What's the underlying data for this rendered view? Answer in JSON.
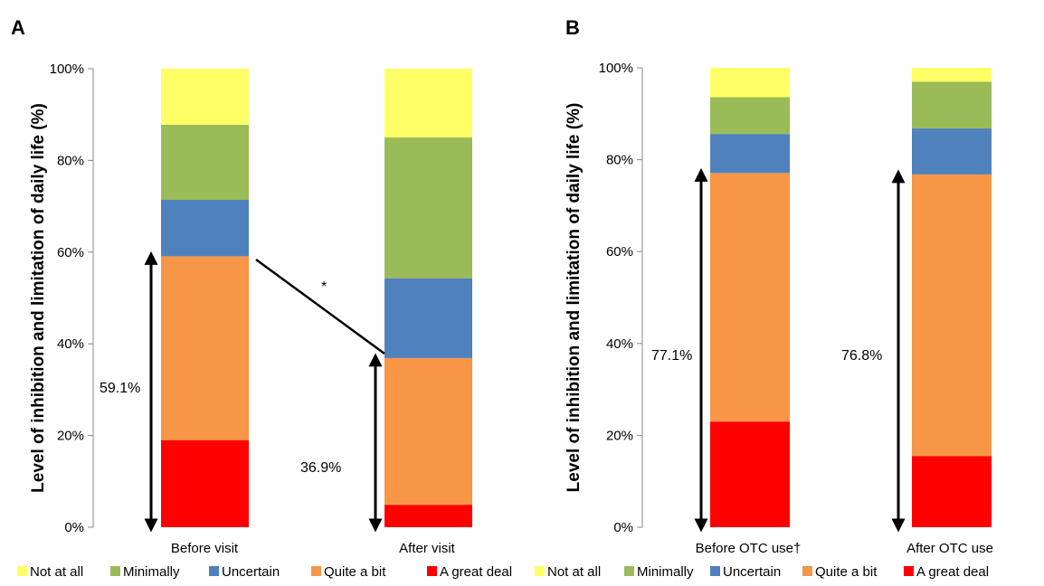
{
  "chart_data": [
    {
      "panel": "A",
      "type": "bar",
      "stacked": true,
      "percent": true,
      "ylabel": "Level of inhibition and limitation of daily life (%)",
      "ylim": [
        0,
        100
      ],
      "yticks": [
        "0%",
        "20%",
        "40%",
        "60%",
        "80%",
        "100%"
      ],
      "categories": [
        "Before visit",
        "After visit"
      ],
      "series": [
        {
          "name": "A great deal",
          "color": "#ff0000",
          "values": [
            19.0,
            4.9
          ]
        },
        {
          "name": "Quite a bit",
          "color": "#f79646",
          "values": [
            40.1,
            32.0
          ]
        },
        {
          "name": "Uncertain",
          "color": "#4f81bd",
          "values": [
            12.3,
            17.4
          ]
        },
        {
          "name": "Minimally",
          "color": "#9bbb59",
          "values": [
            16.4,
            30.7
          ]
        },
        {
          "name": "Not at all",
          "color": "#ffff66",
          "values": [
            12.2,
            15.0
          ]
        }
      ],
      "annotations": {
        "brackets": [
          {
            "category": "Before visit",
            "label": "59.1%",
            "value": 59.1
          },
          {
            "category": "After visit",
            "label": "36.9%",
            "value": 36.9
          }
        ],
        "significance_mark": "*"
      },
      "legend": "bottom"
    },
    {
      "panel": "B",
      "type": "bar",
      "stacked": true,
      "percent": true,
      "ylabel": "Level of inhibition and limitation of daily life (%)",
      "ylim": [
        0,
        100
      ],
      "yticks": [
        "0%",
        "20%",
        "40%",
        "60%",
        "80%",
        "100%"
      ],
      "categories": [
        "Before OTC use†",
        "After OTC use"
      ],
      "series": [
        {
          "name": "A great deal",
          "color": "#ff0000",
          "values": [
            23.0,
            15.5
          ]
        },
        {
          "name": "Quite a bit",
          "color": "#f79646",
          "values": [
            54.1,
            61.3
          ]
        },
        {
          "name": "Uncertain",
          "color": "#4f81bd",
          "values": [
            8.5,
            10.0
          ]
        },
        {
          "name": "Minimally",
          "color": "#9bbb59",
          "values": [
            8.0,
            10.2
          ]
        },
        {
          "name": "Not at all",
          "color": "#ffff66",
          "values": [
            6.4,
            3.0
          ]
        }
      ],
      "annotations": {
        "brackets": [
          {
            "category": "Before OTC use†",
            "label": "77.1%",
            "value": 77.1
          },
          {
            "category": "After OTC use",
            "label": "76.8%",
            "value": 76.8
          }
        ]
      },
      "legend": "bottom"
    }
  ],
  "legend_order": [
    "Not at all",
    "Minimally",
    "Uncertain",
    "Quite a bit",
    "A great deal"
  ]
}
